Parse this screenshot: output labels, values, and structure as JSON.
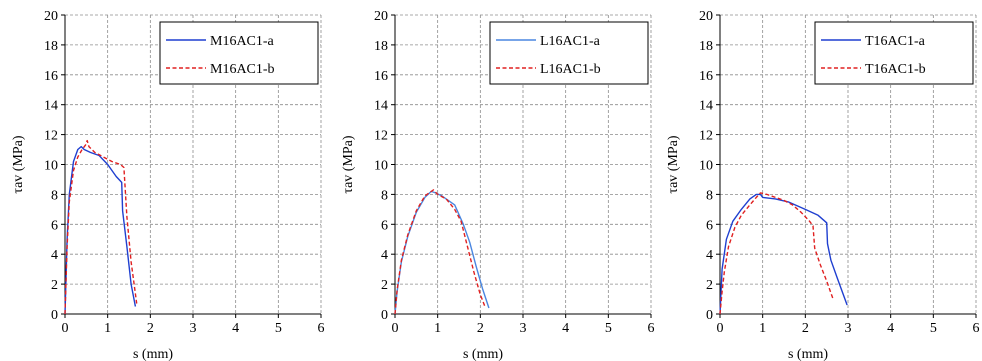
{
  "chart_data": [
    {
      "type": "line",
      "xlabel": "s (mm)",
      "ylabel": "τav  (MPa)",
      "xlim": [
        0,
        6
      ],
      "ylim": [
        0,
        20
      ],
      "xticks": [
        0,
        1,
        2,
        3,
        4,
        5,
        6
      ],
      "yticks": [
        0,
        2,
        4,
        6,
        8,
        10,
        12,
        14,
        16,
        18,
        20
      ],
      "grid": true,
      "legend_position": "top-right",
      "series": [
        {
          "name": "M16AC1-a",
          "color": "#1f3fd0",
          "dash": "solid",
          "x": [
            0,
            0.05,
            0.1,
            0.2,
            0.3,
            0.38,
            0.45,
            0.6,
            0.8,
            1.0,
            1.2,
            1.33,
            1.35,
            1.45,
            1.55,
            1.65
          ],
          "y": [
            0,
            5.0,
            8.0,
            10.2,
            11.0,
            11.2,
            11.0,
            10.8,
            10.6,
            10.0,
            9.2,
            8.8,
            6.9,
            4.5,
            2.0,
            0.5
          ]
        },
        {
          "name": "M16AC1-b",
          "color": "#e02020",
          "dash": "dashed",
          "x": [
            0,
            0.05,
            0.1,
            0.2,
            0.3,
            0.4,
            0.48,
            0.52,
            0.56,
            0.7,
            0.9,
            1.1,
            1.3,
            1.38,
            1.45,
            1.55,
            1.68
          ],
          "y": [
            0,
            4.5,
            7.5,
            9.6,
            10.5,
            11.0,
            11.3,
            11.6,
            11.2,
            10.8,
            10.5,
            10.2,
            10.0,
            9.8,
            6.5,
            3.5,
            0.7
          ]
        }
      ]
    },
    {
      "type": "line",
      "xlabel": "s (mm)",
      "ylabel": "τav  (MPa)",
      "xlim": [
        0,
        6
      ],
      "ylim": [
        0,
        20
      ],
      "xticks": [
        0,
        1,
        2,
        3,
        4,
        5,
        6
      ],
      "yticks": [
        0,
        2,
        4,
        6,
        8,
        10,
        12,
        14,
        16,
        18,
        20
      ],
      "grid": true,
      "legend_position": "top-right",
      "series": [
        {
          "name": "L16AC1-a",
          "color": "#4a86e0",
          "dash": "solid",
          "x": [
            0,
            0.05,
            0.15,
            0.3,
            0.5,
            0.7,
            0.85,
            0.95,
            1.1,
            1.4,
            1.6,
            1.75,
            1.9,
            2.05,
            2.2
          ],
          "y": [
            0,
            1.5,
            3.5,
            5.2,
            6.8,
            7.8,
            8.2,
            8.1,
            7.9,
            7.3,
            6.0,
            4.8,
            3.2,
            1.7,
            0.4
          ]
        },
        {
          "name": "L16AC1-b",
          "color": "#e02020",
          "dash": "dashed",
          "x": [
            0,
            0.05,
            0.15,
            0.3,
            0.5,
            0.7,
            0.9,
            1.0,
            1.2,
            1.4,
            1.55,
            1.7,
            1.85,
            2.0,
            2.12
          ],
          "y": [
            0,
            1.6,
            3.6,
            5.3,
            6.9,
            7.9,
            8.3,
            8.0,
            7.7,
            7.0,
            6.2,
            4.5,
            2.8,
            1.3,
            0.4
          ]
        }
      ]
    },
    {
      "type": "line",
      "xlabel": "s (mm)",
      "ylabel": "τav  (MPa)",
      "xlim": [
        0,
        6
      ],
      "ylim": [
        0,
        20
      ],
      "xticks": [
        0,
        1,
        2,
        3,
        4,
        5,
        6
      ],
      "yticks": [
        0,
        2,
        4,
        6,
        8,
        10,
        12,
        14,
        16,
        18,
        20
      ],
      "grid": true,
      "legend_position": "top-right",
      "series": [
        {
          "name": "T16AC1-a",
          "color": "#1f3fd0",
          "dash": "solid",
          "x": [
            0,
            0.05,
            0.15,
            0.3,
            0.5,
            0.7,
            0.85,
            0.95,
            1.0,
            1.3,
            1.6,
            2.0,
            2.3,
            2.5,
            2.52,
            2.6,
            2.75,
            2.98
          ],
          "y": [
            0,
            3.0,
            5.0,
            6.2,
            7.0,
            7.7,
            8.0,
            8.0,
            7.8,
            7.7,
            7.5,
            7.0,
            6.6,
            6.1,
            4.7,
            3.6,
            2.4,
            0.6
          ]
        },
        {
          "name": "T16AC1-b",
          "color": "#e02020",
          "dash": "dashed",
          "x": [
            0,
            0.05,
            0.1,
            0.2,
            0.35,
            0.5,
            0.7,
            0.85,
            0.95,
            1.1,
            1.3,
            1.5,
            1.7,
            1.9,
            2.1,
            2.18,
            2.22,
            2.35,
            2.5,
            2.65
          ],
          "y": [
            0,
            1.5,
            2.8,
            4.5,
            5.8,
            6.6,
            7.3,
            7.8,
            8.1,
            8.0,
            7.8,
            7.6,
            7.3,
            6.8,
            6.2,
            5.9,
            4.4,
            3.3,
            2.2,
            1.0
          ]
        }
      ]
    }
  ]
}
